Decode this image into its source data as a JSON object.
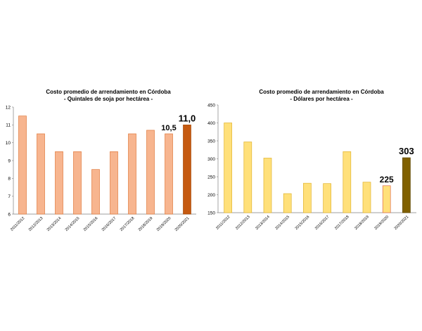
{
  "chart_data": [
    {
      "type": "bar",
      "title": "Costo promedio de arrendamiento en Córdoba",
      "subtitle": "- Quintales de soja por hectárea -",
      "categories": [
        "2011/2012",
        "2012/2013",
        "2013/2014",
        "2014/2015",
        "2015/2016",
        "2016/2017",
        "2017/2018",
        "2018/2019",
        "2019/2020",
        "2020/2021"
      ],
      "values": [
        11.5,
        10.5,
        9.5,
        9.5,
        8.5,
        9.5,
        10.5,
        10.7,
        10.5,
        11.0
      ],
      "ylim": [
        6,
        12
      ],
      "yticks": [
        "6",
        "7",
        "8",
        "9",
        "10",
        "11",
        "12"
      ],
      "data_labels": [
        {
          "index": 8,
          "text": "10,5"
        },
        {
          "index": 9,
          "text": "11,0"
        }
      ],
      "colors": {
        "bar": "#F7B58F",
        "bar_stroke": "#E07A3C",
        "highlight": "#C55A11",
        "highlight_stroke": "#A64B0B"
      },
      "highlight_index": 9,
      "grid": false
    },
    {
      "type": "bar",
      "title": "Costo promedio de arrendamiento en Córdoba",
      "subtitle": "- Dólares por hectárea -",
      "categories": [
        "2011/2012",
        "2012/2013",
        "2013/2014",
        "2014/2015",
        "2015/2016",
        "2016/2017",
        "2017/2018",
        "2018/2019",
        "2019/2020",
        "2020/2021"
      ],
      "values": [
        400,
        347,
        302,
        203,
        232,
        231,
        320,
        235,
        225,
        303
      ],
      "ylim": [
        150,
        450
      ],
      "yticks": [
        "150",
        "200",
        "250",
        "300",
        "350",
        "400",
        "450"
      ],
      "data_labels": [
        {
          "index": 8,
          "text": "225"
        },
        {
          "index": 9,
          "text": "303"
        }
      ],
      "colors": {
        "bar": "#FFE07A",
        "bar_stroke": "#E0B22E",
        "highlight": "#806000",
        "highlight_stroke": "#5E4700",
        "label8_stroke": "#E06A4A"
      },
      "highlight_index": 9,
      "grid": false
    }
  ]
}
